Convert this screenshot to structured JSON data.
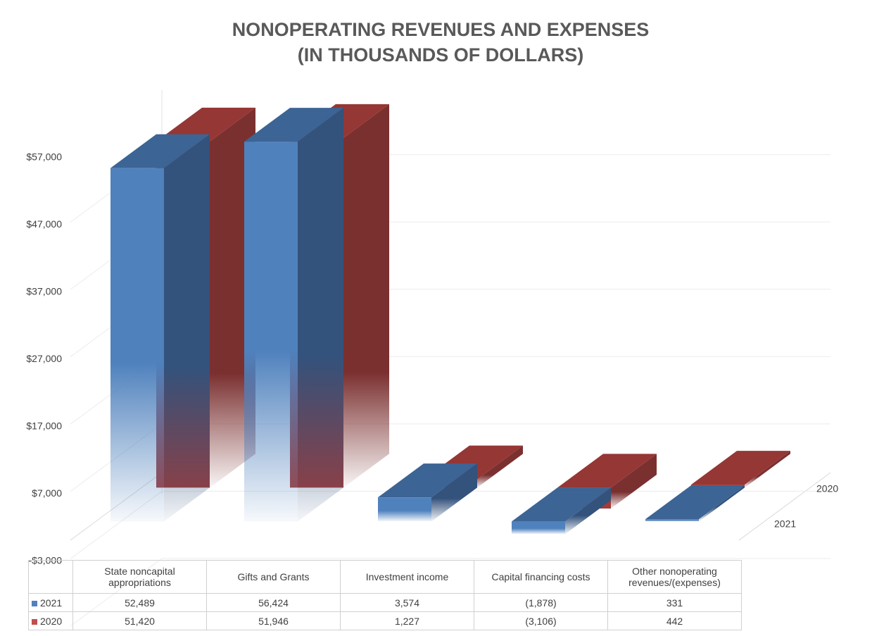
{
  "chart_data": {
    "type": "bar3d",
    "title": [
      "NONOPERATING REVENUES AND EXPENSES",
      "(IN THOUSANDS OF DOLLARS)"
    ],
    "categories": [
      "State noncapital appropriations",
      "Gifts and Grants",
      "Investment income",
      "Capital financing costs",
      "Other nonoperating revenues/(expenses)"
    ],
    "series": [
      {
        "name": "2021",
        "color": "#4f81bd",
        "values": [
          52489,
          56424,
          3574,
          -1878,
          331
        ],
        "value_labels": [
          "52,489",
          "56,424",
          "3,574",
          "(1,878)",
          "331"
        ]
      },
      {
        "name": "2020",
        "color": "#c0504d",
        "values": [
          51420,
          51946,
          1227,
          -3106,
          442
        ],
        "value_labels": [
          "51,420",
          "51,946",
          "1,227",
          "(3,106)",
          "442"
        ]
      }
    ],
    "ylim": [
      -3000,
      67000
    ],
    "yticks": [
      {
        "value": -3000,
        "label": "-$3,000"
      },
      {
        "value": 7000,
        "label": "$7,000"
      },
      {
        "value": 17000,
        "label": "$17,000"
      },
      {
        "value": 27000,
        "label": "$27,000"
      },
      {
        "value": 37000,
        "label": "$37,000"
      },
      {
        "value": 47000,
        "label": "$47,000"
      },
      {
        "value": 57000,
        "label": "$57,000"
      }
    ],
    "grid": true,
    "data_table": true
  }
}
